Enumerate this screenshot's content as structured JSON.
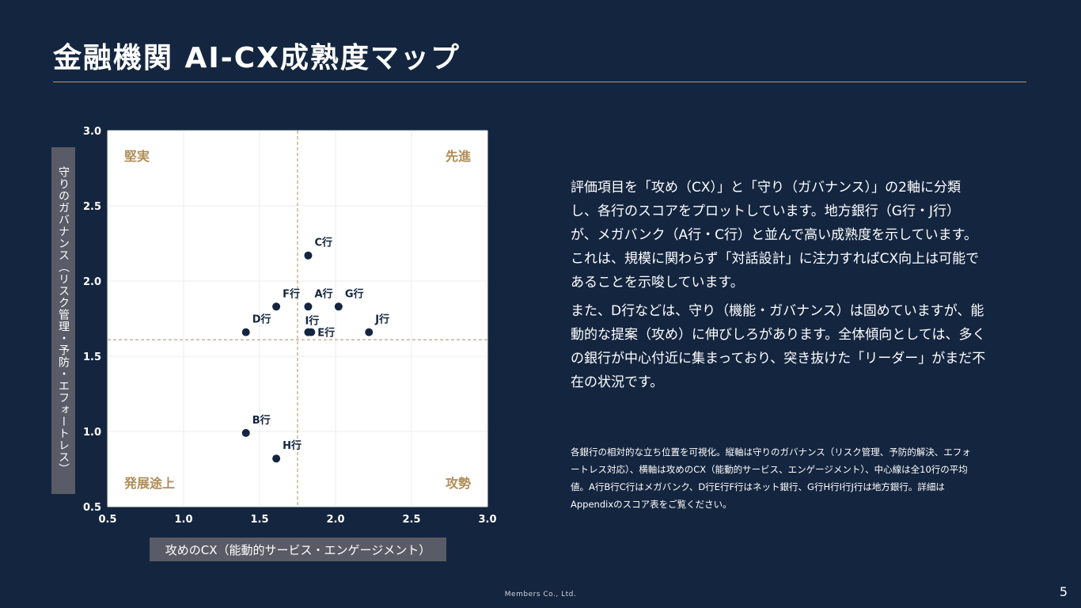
{
  "title": "金融機関 AI-CX成熟度マップ",
  "chart_data": {
    "type": "scatter",
    "xlabel": "攻めのCX（能動的サービス・エンゲージメント）",
    "ylabel": "守りのガバナンス（リスク管理・予防・エフォートレス）",
    "xlim": [
      0.5,
      3.0
    ],
    "ylim": [
      0.5,
      3.0
    ],
    "xticks": [
      "0.5",
      "1.0",
      "1.5",
      "2.0",
      "2.5",
      "3.0"
    ],
    "yticks": [
      "0.5",
      "1.0",
      "1.5",
      "2.0",
      "2.5",
      "3.0"
    ],
    "grid": true,
    "center": {
      "x": 1.75,
      "y": 1.61
    },
    "quadrants": {
      "top_left": "堅実",
      "top_right": "先進",
      "bottom_left": "発展途上",
      "bottom_right": "攻勢"
    },
    "points": [
      {
        "label": "A行",
        "x": 1.82,
        "y": 1.83
      },
      {
        "label": "B行",
        "x": 1.41,
        "y": 0.99
      },
      {
        "label": "C行",
        "x": 1.82,
        "y": 2.17
      },
      {
        "label": "D行",
        "x": 1.41,
        "y": 1.66
      },
      {
        "label": "E行",
        "x": 1.84,
        "y": 1.66
      },
      {
        "label": "F行",
        "x": 1.61,
        "y": 1.83
      },
      {
        "label": "G行",
        "x": 2.02,
        "y": 1.83
      },
      {
        "label": "H行",
        "x": 1.61,
        "y": 0.82
      },
      {
        "label": "I行",
        "x": 1.82,
        "y": 1.66
      },
      {
        "label": "J行",
        "x": 2.22,
        "y": 1.66
      }
    ],
    "colors": {
      "point": "#14253f",
      "quadrant_label": "#b08d57",
      "center_line": "#b08d57",
      "plot_bg": "#ffffff"
    }
  },
  "description": {
    "p1": "評価項目を「攻め（CX）」と「守り（ガバナンス）」の2軸に分類し、各行のスコアをプロットしています。地方銀行（G行・J行）が、メガバンク（A行・C行）と並んで高い成熟度を示しています。これは、規模に関わらず「対話設計」に注力すればCX向上は可能であることを示唆しています。",
    "p2": "また、D行などは、守り（機能・ガバナンス）は固めていますが、能動的な提案（攻め）に伸びしろがあります。全体傾向としては、多くの銀行が中心付近に集まっており、突き抜けた「リーダー」がまだ不在の状況です。"
  },
  "note": "各銀行の相対的な立ち位置を可視化。縦軸は守りのガバナンス（リスク管理、予防的解決、エフォートレス対応）、横軸は攻めのCX（能動的サービス、エンゲージメント）、中心線は全10行の平均値。A行B行C行はメガバンク、D行E行F行はネット銀行、G行H行I行J行は地方銀行。詳細はAppendixのスコア表をご覧ください。",
  "footer": "Members Co., Ltd.",
  "page_number": "5"
}
